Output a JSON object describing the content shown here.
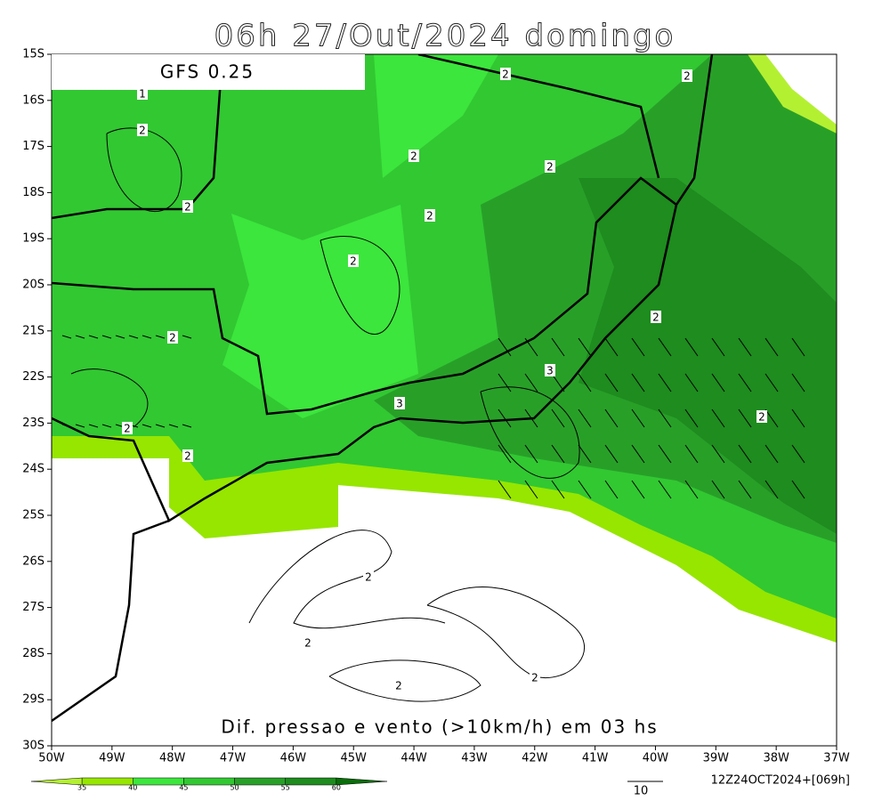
{
  "header": {
    "title": "06h 27/Out/2024 domingo",
    "model": "GFS 0.25"
  },
  "map": {
    "lat_labels": [
      "15S",
      "16S",
      "17S",
      "18S",
      "19S",
      "20S",
      "21S",
      "22S",
      "23S",
      "24S",
      "25S",
      "26S",
      "27S",
      "28S",
      "29S",
      "30S"
    ],
    "lon_labels": [
      "50W",
      "49W",
      "48W",
      "47W",
      "46W",
      "45W",
      "44W",
      "43W",
      "42W",
      "41W",
      "40W",
      "39W",
      "38W",
      "37W"
    ],
    "contour_labels": [
      "1",
      "2",
      "2",
      "2",
      "2",
      "2",
      "2",
      "2",
      "2",
      "2",
      "2",
      "3",
      "3",
      "2",
      "2",
      "2",
      "2",
      "2",
      "2",
      "2"
    ],
    "caption": "Dif. pressao e vento (>10km/h) em 03 hs"
  },
  "colorbar": {
    "levels": [
      35,
      40,
      45,
      50,
      55,
      60
    ],
    "colors": [
      "#b4f032",
      "#96e600",
      "#3ce63c",
      "#32c832",
      "#28a028",
      "#1e8c1e",
      "#0a6e0a"
    ]
  },
  "footer": {
    "run": "12Z24OCT2024+[069h]",
    "vector_scale": "10"
  }
}
